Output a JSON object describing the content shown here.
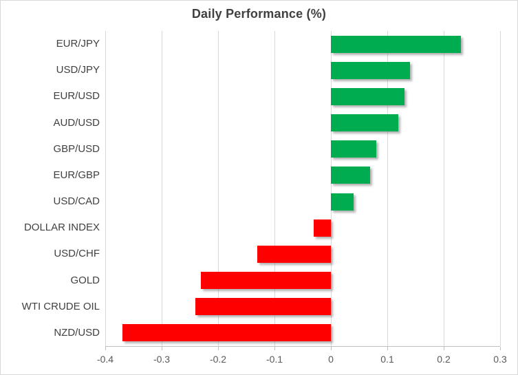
{
  "chart_data": {
    "type": "bar",
    "orientation": "horizontal",
    "title": "Daily Performance (%)",
    "categories": [
      "EUR/JPY",
      "USD/JPY",
      "EUR/USD",
      "AUD/USD",
      "GBP/USD",
      "EUR/GBP",
      "USD/CAD",
      "DOLLAR INDEX",
      "USD/CHF",
      "GOLD",
      "WTI CRUDE OIL",
      "NZD/USD"
    ],
    "values": [
      0.23,
      0.14,
      0.13,
      0.12,
      0.08,
      0.07,
      0.04,
      -0.03,
      -0.13,
      -0.23,
      -0.24,
      -0.37
    ],
    "xlabel": "",
    "ylabel": "",
    "xlim": [
      -0.4,
      0.3
    ],
    "xticks": [
      -0.4,
      -0.3,
      -0.2,
      -0.1,
      0,
      0.1,
      0.2,
      0.3
    ],
    "xtick_labels": [
      "-0.4",
      "-0.3",
      "-0.2",
      "-0.1",
      "0",
      "0.1",
      "0.2",
      "0.3"
    ],
    "grid": "vertical-major",
    "legend": "none",
    "colors": {
      "positive_bar": "#00ac50",
      "negative_bar": "#ff0000",
      "gridline": "#d9d9d9",
      "axis_line": "#bfbfbf",
      "title_text": "#404040",
      "category_text": "#404040",
      "tick_text": "#595959",
      "background": "#ffffff",
      "chart_border": "#d9d9d9"
    }
  }
}
